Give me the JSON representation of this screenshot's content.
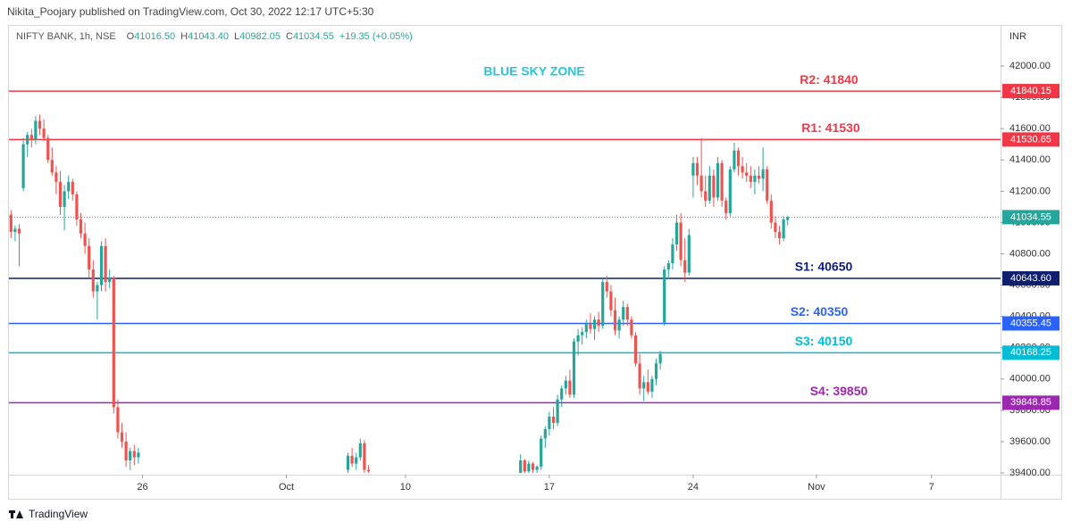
{
  "header": "Nikita_Poojary published on TradingView.com, Oct 30, 2022 12:17 UTC+5:30",
  "footer": "TradingView",
  "chart_data": {
    "type": "candlestick",
    "legend": {
      "symbol": "NIFTY BANK, 1h, NSE",
      "items": [
        {
          "key": "O",
          "value": "41016.50"
        },
        {
          "key": "H",
          "value": "41043.40"
        },
        {
          "key": "L",
          "value": "40982.05"
        },
        {
          "key": "C",
          "value": "41034.55"
        }
      ],
      "change": "+19.35 (+0.05%)"
    },
    "annotation": "BLUE SKY ZONE",
    "currency": "INR",
    "up_color": "#26a69a",
    "down_color": "#ef5350",
    "xlim": [
      -0.5,
      240.8
    ],
    "xticks": [
      {
        "value": 32,
        "label": "26"
      },
      {
        "value": 67,
        "label": "Oct"
      },
      {
        "value": 96,
        "label": "10"
      },
      {
        "value": 131,
        "label": "17"
      },
      {
        "value": 166,
        "label": "24"
      },
      {
        "value": 196,
        "label": "Nov"
      },
      {
        "value": 224,
        "label": "7"
      }
    ],
    "ylim": [
      39389,
      42251
    ],
    "yticks": [
      {
        "value": 39400,
        "label": "39400.00"
      },
      {
        "value": 39600,
        "label": "39600.00"
      },
      {
        "value": 39800,
        "label": "39800.00"
      },
      {
        "value": 40000,
        "label": "40000.00"
      },
      {
        "value": 40200,
        "label": "40200.00"
      },
      {
        "value": 40400,
        "label": "40400.00"
      },
      {
        "value": 40600,
        "label": "40600.00"
      },
      {
        "value": 40800,
        "label": "40800.00"
      },
      {
        "value": 41000,
        "label": "41000.00"
      },
      {
        "value": 41200,
        "label": "41200.00"
      },
      {
        "value": 41400,
        "label": "41400.00"
      },
      {
        "value": 41600,
        "label": "41600.00"
      },
      {
        "value": 41800,
        "label": "41800.00"
      },
      {
        "value": 42000,
        "label": "42000.00"
      }
    ],
    "x": [
      0,
      1,
      2,
      3,
      4,
      5,
      6,
      7,
      8,
      9,
      10,
      11,
      12,
      13,
      14,
      15,
      16,
      17,
      18,
      19,
      20,
      21,
      22,
      23,
      24,
      25,
      26,
      27,
      28,
      29,
      30,
      31,
      82,
      83,
      84,
      85,
      86,
      87,
      124,
      125,
      126,
      127,
      128,
      129,
      130,
      131,
      132,
      133,
      134,
      135,
      136,
      137,
      138,
      139,
      140,
      141,
      142,
      143,
      144,
      145,
      146,
      147,
      148,
      149,
      150,
      151,
      152,
      153,
      154,
      155,
      156,
      157,
      158,
      159,
      160,
      161,
      162,
      163,
      164,
      165,
      166,
      167,
      168,
      169,
      170,
      171,
      172,
      173,
      174,
      175,
      176,
      177,
      178,
      179,
      180,
      181,
      182,
      183,
      184,
      185,
      186,
      187,
      188,
      189
    ],
    "open": [
      41050,
      40940,
      40960,
      41220,
      41500,
      41560,
      41530,
      41650,
      41600,
      41540,
      41400,
      41320,
      41260,
      41100,
      41200,
      41260,
      41180,
      41020,
      40930,
      40850,
      40700,
      40560,
      40600,
      40850,
      40620,
      40650,
      39820,
      39660,
      39600,
      39480,
      39540,
      39500,
      39420,
      39510,
      39460,
      39500,
      39590,
      39420,
      39400,
      39480,
      39410,
      39460,
      39420,
      39440,
      39620,
      39680,
      39760,
      39720,
      39870,
      39940,
      39990,
      39900,
      40240,
      40280,
      40300,
      40350,
      40320,
      40380,
      40340,
      40620,
      40560,
      40440,
      40310,
      40380,
      40460,
      40380,
      40280,
      40100,
      39940,
      39980,
      39920,
      40000,
      40100,
      40360,
      40700,
      40740,
      40860,
      41000,
      40760,
      40680,
      41300,
      41380,
      41300,
      41200,
      41140,
      41300,
      41160,
      41380,
      41140,
      41060,
      41340,
      41460,
      41360,
      41320,
      41300,
      41260,
      41300,
      41280,
      41340,
      41140,
      41000,
      40940,
      40900,
      41016.5
    ],
    "high": [
      41080,
      40980,
      40990,
      41540,
      41580,
      41600,
      41680,
      41690,
      41660,
      41560,
      41480,
      41360,
      41330,
      41240,
      41300,
      41280,
      41200,
      41060,
      41000,
      40900,
      40760,
      40620,
      40880,
      40900,
      40700,
      40660,
      39870,
      39720,
      39660,
      39560,
      39580,
      39560,
      39530,
      39560,
      39530,
      39620,
      39610,
      39450,
      39520,
      39490,
      39480,
      39470,
      39450,
      39640,
      39700,
      39790,
      39820,
      39900,
      39960,
      40020,
      40060,
      40260,
      40320,
      40330,
      40380,
      40420,
      40400,
      40430,
      40640,
      40660,
      40600,
      40520,
      40400,
      40500,
      40480,
      40400,
      40300,
      40160,
      40020,
      40060,
      40020,
      40130,
      40180,
      40720,
      40760,
      40900,
      41050,
      41060,
      40900,
      40960,
      41420,
      41420,
      41540,
      41300,
      41360,
      41340,
      41420,
      41400,
      41160,
      41360,
      41510,
      41480,
      41420,
      41380,
      41360,
      41340,
      41360,
      41480,
      41360,
      41180,
      41040,
      40980,
      41040,
      41043.4
    ],
    "low": [
      40900,
      40880,
      40720,
      41200,
      41420,
      41480,
      41500,
      41560,
      41520,
      41380,
      41300,
      41180,
      41050,
      40950,
      41150,
      41140,
      40980,
      40900,
      40800,
      40650,
      40520,
      40380,
      40560,
      40560,
      40580,
      39780,
      39620,
      39560,
      39440,
      39420,
      39450,
      39460,
      39400,
      39440,
      39420,
      39480,
      39400,
      39400,
      39400,
      39400,
      39400,
      39400,
      39400,
      39420,
      39560,
      39640,
      39680,
      39700,
      39820,
      39900,
      39880,
      39880,
      40150,
      40220,
      40260,
      40290,
      40250,
      40300,
      40320,
      40520,
      40400,
      40280,
      40260,
      40340,
      40340,
      40260,
      40080,
      39900,
      39860,
      39900,
      39880,
      39960,
      40060,
      40340,
      40640,
      40700,
      40820,
      40720,
      40620,
      40660,
      41160,
      41240,
      41160,
      41100,
      41120,
      41100,
      41140,
      41100,
      41020,
      41040,
      41320,
      41300,
      41280,
      41260,
      41220,
      41180,
      41250,
      41200,
      41120,
      40960,
      40900,
      40860,
      40880,
      40982.05
    ],
    "close": [
      40940,
      40960,
      40930,
      41500,
      41560,
      41530,
      41650,
      41600,
      41540,
      41400,
      41320,
      41260,
      41100,
      41200,
      41260,
      41180,
      41020,
      40930,
      40850,
      40700,
      40560,
      40600,
      40850,
      40620,
      40650,
      39820,
      39660,
      39600,
      39480,
      39540,
      39500,
      39530,
      39510,
      39460,
      39500,
      39590,
      39420,
      39410,
      39480,
      39410,
      39460,
      39420,
      39440,
      39620,
      39680,
      39760,
      39720,
      39870,
      39940,
      39990,
      39900,
      40240,
      40280,
      40300,
      40350,
      40320,
      40380,
      40340,
      40620,
      40560,
      40440,
      40310,
      40380,
      40460,
      40380,
      40280,
      40100,
      39940,
      39980,
      39920,
      40000,
      40100,
      40160,
      40700,
      40740,
      40860,
      41000,
      40760,
      40680,
      40920,
      41380,
      41300,
      41200,
      41140,
      41300,
      41160,
      41380,
      41140,
      41060,
      41340,
      41460,
      41360,
      41320,
      41300,
      41260,
      41300,
      41280,
      41340,
      41140,
      41000,
      40940,
      40900,
      41020,
      41034.55
    ],
    "levels": [
      {
        "name": "R2: 41840",
        "value": 41840.15,
        "value_label": "41840.15",
        "color": "#f23645"
      },
      {
        "name": "R1: 41530",
        "value": 41530.65,
        "value_label": "41530.65",
        "color": "#f23645"
      },
      {
        "name": "S1: 40650",
        "value": 40643.6,
        "value_label": "40643.60",
        "color": "#0d1f6e"
      },
      {
        "name": "S2: 40350",
        "value": 40355.45,
        "value_label": "40355.45",
        "color": "#2962ff"
      },
      {
        "name": "S3: 40150",
        "value": 40168.25,
        "value_label": "40168.25",
        "color": "#00bcd4"
      },
      {
        "name": "S4: 39850",
        "value": 39848.85,
        "value_label": "39848.85",
        "color": "#9c27b0"
      }
    ],
    "last": {
      "value": 41034.55,
      "color": "#26a69a"
    }
  }
}
